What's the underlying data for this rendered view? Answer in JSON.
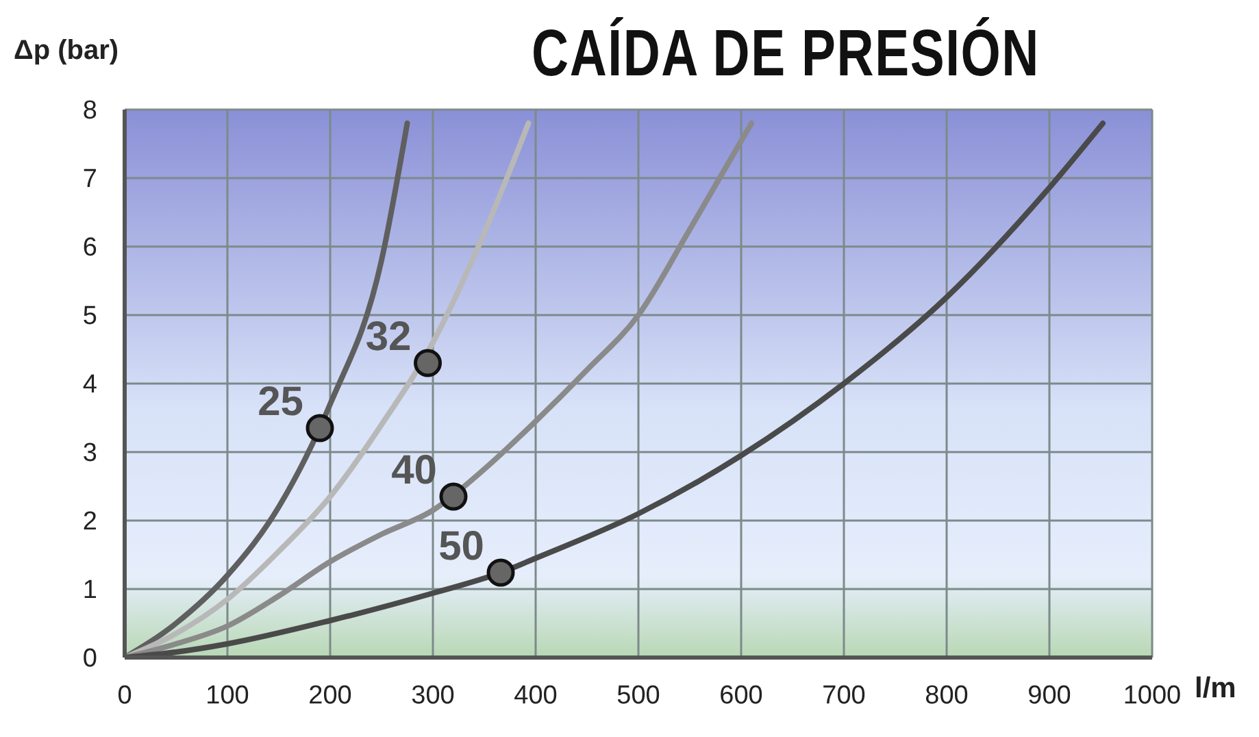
{
  "chart_data": {
    "type": "line",
    "title": "CAÍDA DE PRESIÓN",
    "ylabel": "Δp (bar)",
    "xlabel": "l/m",
    "xlim": [
      0,
      1000
    ],
    "xticks": [
      0,
      100,
      200,
      300,
      400,
      500,
      600,
      700,
      800,
      900,
      1000
    ],
    "ylim": [
      0,
      8
    ],
    "yticks": [
      0,
      1,
      2,
      3,
      4,
      5,
      6,
      7,
      8
    ],
    "grid": true,
    "line_style": "solid",
    "series": [
      {
        "color": "#5f5f5f",
        "x": [
          0,
          50,
          100,
          150,
          200,
          250,
          275
        ],
        "values": [
          0,
          0.5,
          1.2,
          2.2,
          3.7,
          5.8,
          7.8
        ]
      },
      {
        "color": "#b8b8b8",
        "x": [
          0,
          50,
          100,
          150,
          200,
          250,
          300,
          350,
          393
        ],
        "values": [
          0,
          0.35,
          0.85,
          1.55,
          2.35,
          3.4,
          4.6,
          6.2,
          7.8
        ]
      },
      {
        "color": "#8a8a8a",
        "x": [
          0,
          50,
          100,
          150,
          200,
          250,
          300,
          350,
          400,
          450,
          500,
          550,
          610
        ],
        "values": [
          0,
          0.2,
          0.46,
          0.9,
          1.4,
          1.8,
          2.15,
          2.75,
          3.45,
          4.2,
          5.0,
          6.25,
          7.8
        ]
      },
      {
        "color": "#4a4a4a",
        "x": [
          0,
          50,
          100,
          200,
          300,
          366,
          400,
          500,
          600,
          700,
          800,
          900,
          952
        ],
        "values": [
          0,
          0.08,
          0.2,
          0.54,
          0.94,
          1.24,
          1.45,
          2.1,
          2.95,
          4.0,
          5.26,
          6.86,
          7.8
        ]
      },
      {
        "type": "scatter",
        "marker": "circle",
        "color": "#666666",
        "x": [
          190,
          295,
          320,
          366
        ],
        "values": [
          3.35,
          4.3,
          2.35,
          1.24
        ]
      }
    ],
    "annotations": [
      {
        "text": "25",
        "x": 190,
        "y": 3.35
      },
      {
        "text": "32",
        "x": 295,
        "y": 4.3
      },
      {
        "text": "40",
        "x": 320,
        "y": 2.35
      },
      {
        "text": "50",
        "x": 366,
        "y": 1.24
      }
    ]
  }
}
